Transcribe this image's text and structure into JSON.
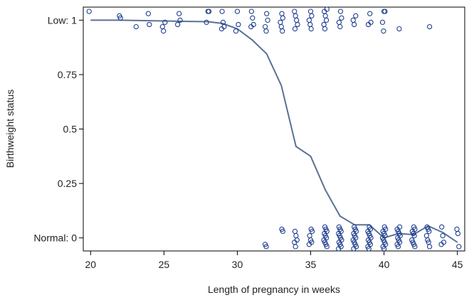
{
  "chart_data": {
    "type": "scatter",
    "xlabel": "Length of pregnancy in weeks",
    "ylabel": "Birthweight status",
    "xlim": [
      19.5,
      45.5
    ],
    "ylim": [
      -0.06,
      1.06
    ],
    "x_ticks": [
      {
        "value": 20,
        "label": "20"
      },
      {
        "value": 25,
        "label": "25"
      },
      {
        "value": 30,
        "label": "30"
      },
      {
        "value": 35,
        "label": "35"
      },
      {
        "value": 40,
        "label": "40"
      },
      {
        "value": 45,
        "label": "45"
      }
    ],
    "y_ticks": [
      {
        "value": 0,
        "label": "Normal: 0"
      },
      {
        "value": 0.25,
        "label": "0.25"
      },
      {
        "value": 0.5,
        "label": "0.5"
      },
      {
        "value": 0.75,
        "label": "0.75"
      },
      {
        "value": 1,
        "label": "Low: 1"
      }
    ],
    "grid": false,
    "legend": "none",
    "colors": {
      "points": "#1f3f8f",
      "smoother": "#5a7196",
      "frame": "#000000"
    },
    "marker": "open-circle",
    "points_low": [
      [
        20,
        1.04
      ],
      [
        22,
        1.02
      ],
      [
        22,
        1.01
      ],
      [
        23,
        0.97
      ],
      [
        24,
        1.03
      ],
      [
        24,
        0.98
      ],
      [
        25,
        0.99
      ],
      [
        25,
        0.97
      ],
      [
        25,
        0.95
      ],
      [
        26,
        1.03
      ],
      [
        26,
        1.0
      ],
      [
        26,
        0.98
      ],
      [
        28,
        1.04
      ],
      [
        28,
        1.04
      ],
      [
        28,
        0.99
      ],
      [
        29,
        1.04
      ],
      [
        29,
        0.99
      ],
      [
        29,
        0.97
      ],
      [
        29,
        0.96
      ],
      [
        30,
        1.04
      ],
      [
        30,
        0.98
      ],
      [
        30,
        0.95
      ],
      [
        31,
        1.04
      ],
      [
        31,
        1.01
      ],
      [
        31,
        0.98
      ],
      [
        31,
        0.97
      ],
      [
        32,
        1.03
      ],
      [
        32,
        1.0
      ],
      [
        32,
        0.97
      ],
      [
        32,
        0.95
      ],
      [
        33,
        1.03
      ],
      [
        33,
        1.01
      ],
      [
        33,
        0.99
      ],
      [
        33,
        0.97
      ],
      [
        33,
        0.95
      ],
      [
        34,
        1.04
      ],
      [
        34,
        1.02
      ],
      [
        34,
        1.0
      ],
      [
        34,
        0.98
      ],
      [
        34,
        0.96
      ],
      [
        35,
        1.04
      ],
      [
        35,
        1.02
      ],
      [
        35,
        1.0
      ],
      [
        35,
        0.98
      ],
      [
        35,
        0.96
      ],
      [
        36,
        1.05
      ],
      [
        36,
        1.04
      ],
      [
        36,
        1.02
      ],
      [
        36,
        1.0
      ],
      [
        36,
        0.98
      ],
      [
        36,
        0.96
      ],
      [
        37,
        1.04
      ],
      [
        37,
        1.01
      ],
      [
        37,
        0.99
      ],
      [
        37,
        0.97
      ],
      [
        38,
        1.02
      ],
      [
        38,
        1.0
      ],
      [
        38,
        0.98
      ],
      [
        39,
        1.03
      ],
      [
        39,
        0.99
      ],
      [
        39,
        0.98
      ],
      [
        40,
        1.04
      ],
      [
        40,
        1.04
      ],
      [
        40,
        0.99
      ],
      [
        40,
        0.95
      ],
      [
        41,
        0.96
      ],
      [
        43,
        0.97
      ]
    ],
    "points_normal": [
      [
        32,
        -0.03
      ],
      [
        32,
        -0.04
      ],
      [
        33,
        0.04
      ],
      [
        33,
        0.03
      ],
      [
        34,
        0.03
      ],
      [
        34,
        0.01
      ],
      [
        34,
        -0.01
      ],
      [
        34,
        -0.02
      ],
      [
        34,
        -0.04
      ],
      [
        35,
        0.04
      ],
      [
        35,
        0.03
      ],
      [
        35,
        0.01
      ],
      [
        35,
        -0.01
      ],
      [
        35,
        -0.02
      ],
      [
        35,
        -0.03
      ],
      [
        36,
        0.05
      ],
      [
        36,
        0.04
      ],
      [
        36,
        0.03
      ],
      [
        36,
        0.02
      ],
      [
        36,
        0.01
      ],
      [
        36,
        0.0
      ],
      [
        36,
        -0.01
      ],
      [
        36,
        -0.02
      ],
      [
        36,
        -0.03
      ],
      [
        36,
        -0.04
      ],
      [
        37,
        0.05
      ],
      [
        37,
        0.04
      ],
      [
        37,
        0.03
      ],
      [
        37,
        0.02
      ],
      [
        37,
        0.01
      ],
      [
        37,
        0.0
      ],
      [
        37,
        -0.01
      ],
      [
        37,
        -0.02
      ],
      [
        37,
        -0.03
      ],
      [
        37,
        -0.04
      ],
      [
        37,
        -0.05
      ],
      [
        38,
        0.05
      ],
      [
        38,
        0.04
      ],
      [
        38,
        0.03
      ],
      [
        38,
        0.02
      ],
      [
        38,
        0.01
      ],
      [
        38,
        0.0
      ],
      [
        38,
        -0.01
      ],
      [
        38,
        -0.02
      ],
      [
        38,
        -0.03
      ],
      [
        38,
        -0.04
      ],
      [
        38,
        -0.05
      ],
      [
        39,
        0.05
      ],
      [
        39,
        0.04
      ],
      [
        39,
        0.03
      ],
      [
        39,
        0.02
      ],
      [
        39,
        0.01
      ],
      [
        39,
        0.0
      ],
      [
        39,
        -0.01
      ],
      [
        39,
        -0.02
      ],
      [
        39,
        -0.03
      ],
      [
        39,
        -0.04
      ],
      [
        39,
        -0.05
      ],
      [
        40,
        0.05
      ],
      [
        40,
        0.04
      ],
      [
        40,
        0.03
      ],
      [
        40,
        0.02
      ],
      [
        40,
        0.01
      ],
      [
        40,
        0.0
      ],
      [
        40,
        -0.01
      ],
      [
        40,
        -0.02
      ],
      [
        40,
        -0.03
      ],
      [
        40,
        -0.04
      ],
      [
        40,
        -0.05
      ],
      [
        41,
        0.05
      ],
      [
        41,
        0.04
      ],
      [
        41,
        0.03
      ],
      [
        41,
        0.02
      ],
      [
        41,
        0.01
      ],
      [
        41,
        0.0
      ],
      [
        41,
        -0.01
      ],
      [
        41,
        -0.02
      ],
      [
        41,
        -0.03
      ],
      [
        41,
        -0.04
      ],
      [
        42,
        0.05
      ],
      [
        42,
        0.04
      ],
      [
        42,
        0.03
      ],
      [
        42,
        0.02
      ],
      [
        42,
        0.01
      ],
      [
        42,
        -0.01
      ],
      [
        42,
        -0.02
      ],
      [
        42,
        -0.03
      ],
      [
        42,
        -0.04
      ],
      [
        43,
        0.05
      ],
      [
        43,
        0.04
      ],
      [
        43,
        0.03
      ],
      [
        43,
        0.01
      ],
      [
        43,
        -0.01
      ],
      [
        43,
        -0.02
      ],
      [
        43,
        -0.04
      ],
      [
        44,
        0.05
      ],
      [
        44,
        0.01
      ],
      [
        44,
        -0.02
      ],
      [
        44,
        -0.03
      ],
      [
        45,
        0.04
      ],
      [
        45,
        0.02
      ],
      [
        45,
        -0.04
      ]
    ],
    "smoother": [
      [
        20,
        1.0
      ],
      [
        22,
        1.0
      ],
      [
        26,
        0.995
      ],
      [
        28,
        0.993
      ],
      [
        29,
        0.985
      ],
      [
        30,
        0.96
      ],
      [
        31,
        0.91
      ],
      [
        32,
        0.845
      ],
      [
        33,
        0.7
      ],
      [
        34,
        0.42
      ],
      [
        35,
        0.375
      ],
      [
        36,
        0.22
      ],
      [
        37,
        0.1
      ],
      [
        38,
        0.06
      ],
      [
        39,
        0.06
      ],
      [
        40,
        0.0
      ],
      [
        41,
        0.02
      ],
      [
        42,
        0.015
      ],
      [
        43,
        0.055
      ],
      [
        44,
        0.025
      ],
      [
        45,
        -0.02
      ]
    ]
  }
}
